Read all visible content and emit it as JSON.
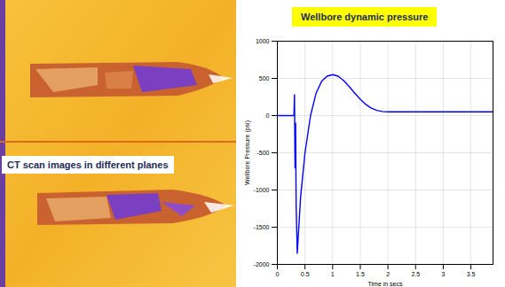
{
  "panel": {
    "caption": "CT scan images in different planes"
  },
  "chart_data": {
    "type": "line",
    "title": "Wellbore dynamic pressure",
    "x_label": "Time in secs",
    "y_label": "Wellbore Pressure (psi)",
    "x": [
      0,
      0.28,
      0.3,
      0.31,
      0.32,
      0.33,
      0.34,
      0.36,
      0.38,
      0.42,
      0.5,
      0.6,
      0.7,
      0.8,
      0.9,
      1.0,
      1.1,
      1.2,
      1.3,
      1.4,
      1.5,
      1.6,
      1.7,
      1.8,
      1.9,
      2.0,
      2.5,
      3.0,
      3.5,
      3.9
    ],
    "values": [
      0,
      0,
      0,
      280,
      -700,
      -100,
      -1200,
      -1850,
      -1600,
      -1100,
      -500,
      0,
      300,
      460,
      530,
      550,
      530,
      470,
      390,
      300,
      220,
      150,
      100,
      70,
      55,
      50,
      50,
      50,
      50,
      50
    ],
    "color": "#0000ff",
    "xlim": [
      0,
      3.9
    ],
    "xticks": [
      0,
      0.5,
      1,
      1.5,
      2,
      2.5,
      3,
      3.5
    ],
    "ylim": [
      -2000,
      1000
    ],
    "yticks": [
      -2000,
      -1500,
      -1000,
      -500,
      0,
      500,
      1000
    ],
    "grid": true
  }
}
